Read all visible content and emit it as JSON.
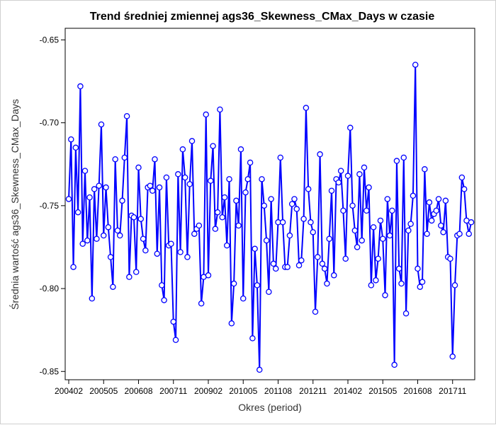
{
  "chart_data": {
    "type": "line",
    "title": "Trend średniej zmiennej ags36_Skewness_CMax_Days w czasie",
    "xlabel": "Okres (period)",
    "ylabel": "Średnia wartość ags36_Skewness_CMax_Days",
    "ylim": [
      -0.855,
      -0.643
    ],
    "yticks": [
      "-0.65",
      "-0.70",
      "-0.75",
      "-0.80",
      "-0.85"
    ],
    "ytick_values": [
      -0.65,
      -0.7,
      -0.75,
      -0.8,
      -0.85
    ],
    "xticks": [
      "200402",
      "200505",
      "200608",
      "200711",
      "200902",
      "201005",
      "201108",
      "201211",
      "201402",
      "201505",
      "201608",
      "201711"
    ],
    "grid": false,
    "line_color": "#0000ff",
    "marker": "open-circle",
    "values": [
      -0.746,
      -0.71,
      -0.787,
      -0.715,
      -0.754,
      -0.678,
      -0.773,
      -0.729,
      -0.771,
      -0.745,
      -0.806,
      -0.74,
      -0.77,
      -0.738,
      -0.701,
      -0.768,
      -0.739,
      -0.763,
      -0.781,
      -0.799,
      -0.722,
      -0.765,
      -0.768,
      -0.747,
      -0.721,
      -0.696,
      -0.793,
      -0.756,
      -0.757,
      -0.79,
      -0.727,
      -0.758,
      -0.77,
      -0.777,
      -0.739,
      -0.738,
      -0.741,
      -0.722,
      -0.779,
      -0.739,
      -0.798,
      -0.807,
      -0.733,
      -0.774,
      -0.773,
      -0.82,
      -0.831,
      -0.731,
      -0.778,
      -0.716,
      -0.733,
      -0.781,
      -0.737,
      -0.711,
      -0.767,
      -0.764,
      -0.762,
      -0.809,
      -0.793,
      -0.695,
      -0.792,
      -0.735,
      -0.714,
      -0.764,
      -0.754,
      -0.692,
      -0.757,
      -0.745,
      -0.774,
      -0.734,
      -0.821,
      -0.797,
      -0.747,
      -0.762,
      -0.716,
      -0.806,
      -0.742,
      -0.734,
      -0.724,
      -0.83,
      -0.776,
      -0.798,
      -0.849,
      -0.734,
      -0.75,
      -0.771,
      -0.802,
      -0.746,
      -0.785,
      -0.788,
      -0.76,
      -0.721,
      -0.76,
      -0.787,
      -0.787,
      -0.768,
      -0.749,
      -0.746,
      -0.752,
      -0.786,
      -0.783,
      -0.758,
      -0.691,
      -0.74,
      -0.76,
      -0.766,
      -0.814,
      -0.781,
      -0.719,
      -0.785,
      -0.788,
      -0.797,
      -0.77,
      -0.741,
      -0.792,
      -0.734,
      -0.736,
      -0.729,
      -0.753,
      -0.782,
      -0.732,
      -0.703,
      -0.75,
      -0.765,
      -0.775,
      -0.731,
      -0.771,
      -0.727,
      -0.753,
      -0.739,
      -0.798,
      -0.763,
      -0.795,
      -0.782,
      -0.759,
      -0.77,
      -0.804,
      -0.746,
      -0.768,
      -0.753,
      -0.846,
      -0.723,
      -0.788,
      -0.797,
      -0.721,
      -0.815,
      -0.765,
      -0.761,
      -0.744,
      -0.665,
      -0.788,
      -0.799,
      -0.796,
      -0.728,
      -0.767,
      -0.748,
      -0.759,
      -0.755,
      -0.753,
      -0.746,
      -0.762,
      -0.766,
      -0.747,
      -0.781,
      -0.782,
      -0.841,
      -0.798,
      -0.768,
      -0.767,
      -0.733,
      -0.74,
      -0.759,
      -0.767,
      -0.76
    ]
  }
}
